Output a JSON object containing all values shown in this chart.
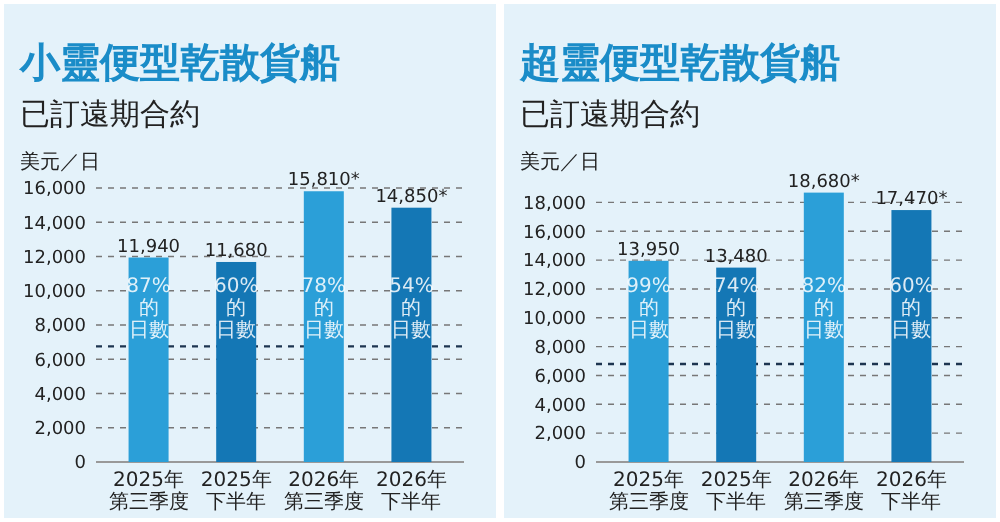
{
  "chart_data": [
    {
      "type": "bar",
      "title": "小靈便型乾散貨船",
      "subtitle": "已訂遠期合約",
      "ylabel": "美元／日",
      "categories": [
        "2025年第三季度",
        "2025年下半年",
        "2026年第三季度",
        "2026年下半年"
      ],
      "values": [
        11940,
        11680,
        15810,
        14850
      ],
      "colors": [
        "#2b9fd8",
        "#1477b5",
        "#2b9fd8",
        "#1477b5"
      ],
      "value_labels": [
        "11,940",
        "11,680",
        "15,810*",
        "14,850*"
      ],
      "ylim": [
        0,
        16000
      ],
      "yticks": [
        {
          "value": 0,
          "label": "0"
        },
        {
          "value": 2000,
          "label": "2,000"
        },
        {
          "value": 4000,
          "label": "4,000"
        },
        {
          "value": 6000,
          "label": "6,000"
        },
        {
          "value": 8000,
          "label": "8,000"
        },
        {
          "value": 10000,
          "label": "10,000"
        },
        {
          "value": 12000,
          "label": "12,000"
        },
        {
          "value": 14000,
          "label": "14,000"
        },
        {
          "value": 16000,
          "label": "16,000"
        }
      ],
      "grid": "y",
      "ref_lines": [
        {
          "axis": "y",
          "value": 6750,
          "color": "#1d3550",
          "line_style": "dashed"
        }
      ],
      "annotations": [
        "87%的日數",
        "60%的日數",
        "78%的日數",
        "54%的日數"
      ]
    },
    {
      "type": "bar",
      "title": "超靈便型乾散貨船",
      "subtitle": "已訂遠期合約",
      "ylabel": "美元／日",
      "categories": [
        "2025年第三季度",
        "2025年下半年",
        "2026年第三季度",
        "2026年下半年"
      ],
      "values": [
        13950,
        13480,
        18680,
        17470
      ],
      "colors": [
        "#2b9fd8",
        "#1477b5",
        "#2b9fd8",
        "#1477b5"
      ],
      "value_labels": [
        "13,950",
        "13,480",
        "18,680*",
        "17,470*"
      ],
      "ylim": [
        0,
        19000
      ],
      "yticks": [
        {
          "value": 0,
          "label": "0"
        },
        {
          "value": 2000,
          "label": "2,000"
        },
        {
          "value": 4000,
          "label": "4,000"
        },
        {
          "value": 6000,
          "label": "6,000"
        },
        {
          "value": 8000,
          "label": "8,000"
        },
        {
          "value": 10000,
          "label": "10,000"
        },
        {
          "value": 12000,
          "label": "12,000"
        },
        {
          "value": 14000,
          "label": "14,000"
        },
        {
          "value": 16000,
          "label": "16,000"
        },
        {
          "value": 18000,
          "label": "18,000"
        }
      ],
      "grid": "y",
      "ref_lines": [
        {
          "axis": "y",
          "value": 6800,
          "color": "#1d3550",
          "line_style": "dashed"
        }
      ],
      "annotations": [
        "99%的日數",
        "74%的日數",
        "82%的日數",
        "60%的日數"
      ]
    }
  ]
}
